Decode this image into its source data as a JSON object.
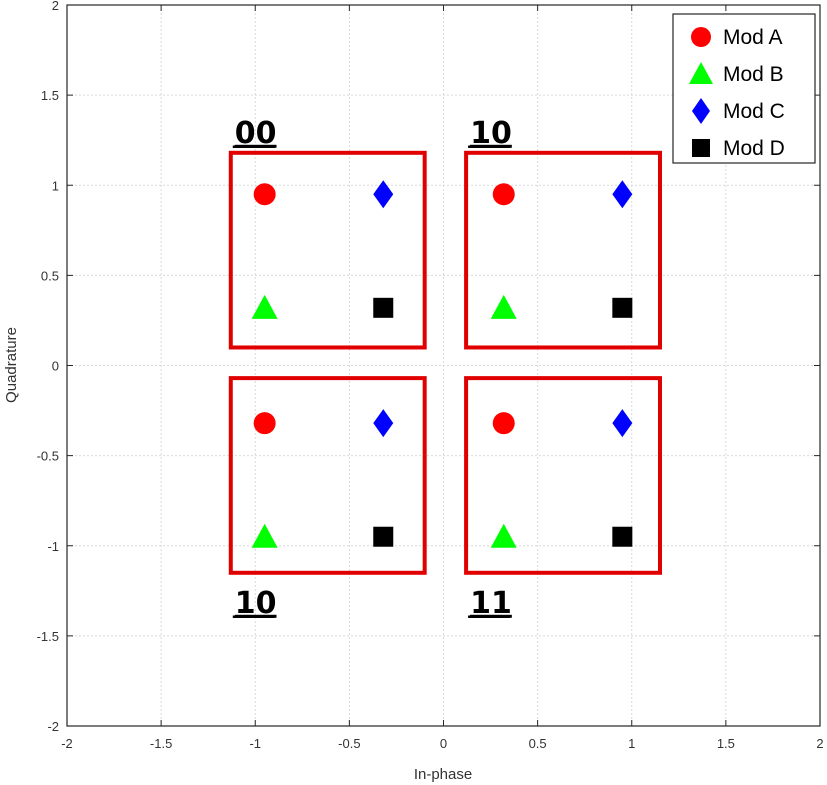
{
  "chart_data": {
    "type": "scatter",
    "title": "",
    "xlabel": "In-phase",
    "ylabel": "Quadrature",
    "xlim": [
      -2,
      2
    ],
    "ylim": [
      -2,
      2
    ],
    "grid": true,
    "legend_position": "top-right",
    "x_ticks": [
      "-2",
      "-1.5",
      "-1",
      "-0.5",
      "0",
      "0.5",
      "1",
      "1.5",
      "2"
    ],
    "y_ticks": [
      "2",
      "1.5",
      "1",
      "0.5",
      "0",
      "-0.5",
      "-1",
      "-1.5",
      "-2"
    ],
    "series": [
      {
        "name": "Mod A",
        "marker": "circle",
        "color": "#ff0000",
        "points": [
          [
            -0.95,
            0.95
          ],
          [
            0.32,
            0.95
          ],
          [
            -0.95,
            -0.32
          ],
          [
            0.32,
            -0.32
          ]
        ]
      },
      {
        "name": "Mod B",
        "marker": "triangle",
        "color": "#00ff00",
        "points": [
          [
            -0.95,
            0.32
          ],
          [
            0.32,
            0.32
          ],
          [
            -0.95,
            -0.95
          ],
          [
            0.32,
            -0.95
          ]
        ]
      },
      {
        "name": "Mod C",
        "marker": "diamond",
        "color": "#0000ff",
        "points": [
          [
            -0.32,
            0.95
          ],
          [
            0.95,
            0.95
          ],
          [
            -0.32,
            -0.32
          ],
          [
            0.95,
            -0.32
          ]
        ]
      },
      {
        "name": "Mod D",
        "marker": "square",
        "color": "#000000",
        "points": [
          [
            -0.32,
            0.32
          ],
          [
            0.95,
            0.32
          ],
          [
            -0.32,
            -0.95
          ],
          [
            0.95,
            -0.95
          ]
        ]
      }
    ],
    "groups": [
      {
        "label": "00",
        "label_position": "top",
        "xrange": [
          -1.13,
          -0.1
        ],
        "yrange": [
          0.1,
          1.18
        ]
      },
      {
        "label": "10",
        "label_position": "top",
        "xrange": [
          0.12,
          1.15
        ],
        "yrange": [
          0.1,
          1.18
        ]
      },
      {
        "label": "10",
        "label_position": "bottom",
        "xrange": [
          -1.13,
          -0.1
        ],
        "yrange": [
          -1.15,
          -0.07
        ]
      },
      {
        "label": "11",
        "label_position": "bottom",
        "xrange": [
          0.12,
          1.15
        ],
        "yrange": [
          -1.15,
          -0.07
        ]
      }
    ],
    "group_box_color": "#e00000"
  }
}
